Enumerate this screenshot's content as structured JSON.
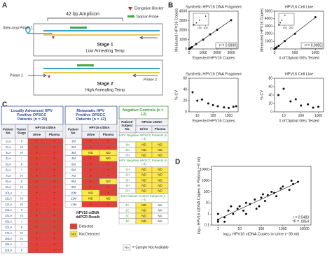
{
  "panels": {
    "a": "A",
    "b": "B",
    "c": "C",
    "d": "D"
  },
  "diagram": {
    "amplicon": "42 bp Amplicon",
    "legend": [
      "Elongation Blocker",
      "Taqman Probe"
    ],
    "stage1": {
      "primer": "Stem-loop Primer 1",
      "title": "Stage 1",
      "subtitle": "Low Annealing Temp"
    },
    "stage2": {
      "primer1": "Primer 1",
      "primer2": "Primer 2",
      "title": "Stage 2",
      "subtitle": "High Annealing Temp"
    }
  },
  "tables": [
    {
      "title": "Locally Advanced HPV Positive OPSCC Patients (n = 20)",
      "color": "#2b4a9a",
      "headers": [
        "Patient No.",
        "Tumor Stage",
        "HPV16 ctDNA",
        "Urine",
        "Plasma"
      ],
      "rows": [
        [
          "1LA",
          "II",
          "+",
          "+"
        ],
        [
          "2LA",
          "III",
          "+",
          "+"
        ],
        [
          "3LA",
          "III",
          "+",
          "+"
        ],
        [
          "4LA",
          "I",
          "+",
          "+"
        ],
        [
          "5LA",
          "II",
          "+",
          "+"
        ],
        [
          "6LA",
          "I",
          "+",
          "+"
        ],
        [
          "7LA",
          "IV",
          "+",
          "+"
        ],
        [
          "8LA",
          "II",
          "+",
          "+"
        ],
        [
          "9LA",
          "III",
          "+",
          "+"
        ],
        [
          "10LA",
          "I",
          "+",
          "+"
        ],
        [
          "11LA",
          "III",
          "+",
          "+"
        ],
        [
          "12LA",
          "IV",
          "+",
          "+"
        ],
        [
          "13LA",
          "II",
          "+",
          "+"
        ],
        [
          "14LA",
          "III",
          "+",
          "+"
        ],
        [
          "15LA",
          "I",
          "+",
          "+"
        ],
        [
          "16LA",
          "II",
          "+",
          "+"
        ],
        [
          "17LA",
          "III",
          "+",
          "+"
        ],
        [
          "18LA",
          "IV",
          "+",
          "+"
        ],
        [
          "19LA",
          "I",
          "+",
          "+"
        ],
        [
          "20LA",
          "II",
          "+",
          "+"
        ]
      ]
    },
    {
      "title": "Metastatic HPV Positive OPSCC Patients (n = 12)",
      "color": "#2b4a9a",
      "headers": [
        "Patient No.",
        "HPV16 ctDNA",
        "Urine",
        "Plasma"
      ],
      "rows": [
        [
          "1M",
          "+",
          "+"
        ],
        [
          "2M",
          "+",
          "+"
        ],
        [
          "3M",
          "ND",
          "ND"
        ],
        [
          "4M",
          "+",
          "ND"
        ],
        [
          "5M",
          "+",
          "+"
        ],
        [
          "6M",
          "+",
          "+"
        ],
        [
          "7M",
          "+",
          "+"
        ],
        [
          "8M",
          "+",
          "ND"
        ],
        [
          "9M",
          "+",
          "+"
        ],
        [
          "10M",
          "ND",
          "+"
        ],
        [
          "11M",
          "ND",
          "ND"
        ],
        [
          "12M",
          "+",
          "+"
        ]
      ]
    },
    {
      "title": "Negative Controls (n = 12)",
      "color": "#3a9a3a",
      "headers": [
        "Patient/ Subject No.",
        "HPV16 ctDNA",
        "Urine",
        "Plasma"
      ],
      "groups": [
        {
          "name": "HPV Negative OPSCC Patients (n = 3)",
          "rows": [
            [
              "1N",
              "ND",
              "ND"
            ],
            [
              "2N",
              "ND",
              "ND"
            ],
            [
              "3N",
              "ND",
              "ND"
            ]
          ]
        },
        {
          "name": "HPV Negative HNSCC Patients (n = 5)",
          "rows": [
            [
              "1H",
              "ND",
              "ND"
            ],
            [
              "2H",
              "ND",
              "ND"
            ],
            [
              "3H",
              "ND",
              "ND"
            ],
            [
              "4H",
              "ND",
              "ND"
            ],
            [
              "5H",
              "ND",
              "ND"
            ]
          ]
        },
        {
          "name": "Non-Cancer Control Subjects (n = 4)",
          "rows": [
            [
              "1C",
              "ND",
              "NA"
            ],
            [
              "2C",
              "ND",
              "NA"
            ],
            [
              "3C",
              "ND",
              "NA"
            ],
            [
              "4C",
              "ND",
              "NA"
            ]
          ]
        }
      ]
    }
  ],
  "result_legend": {
    "title": "HPV16 ctDNA ddPCR Result:",
    "items": [
      {
        "symbol": "+",
        "label": "Detected",
        "color": "#e2413a"
      },
      {
        "symbol": "ND",
        "label": "Not Detected",
        "color": "#ffe94a"
      }
    ],
    "na": {
      "symbol": "NA",
      "label": "= Sample Not Available"
    }
  },
  "chart_data": [
    {
      "type": "scatter",
      "title": "Synthetic HPV16 DNA Fragment",
      "xlabel": "Expected HPV16 Copies",
      "ylabel": "Measured HPV16 Copies",
      "x": [
        0,
        10,
        50,
        100,
        200,
        500,
        1000,
        1500,
        2000,
        3000
      ],
      "values": [
        0,
        12,
        48,
        105,
        190,
        520,
        980,
        1550,
        2030,
        3050
      ],
      "xlim": [
        0,
        3500
      ],
      "xticks": [
        0,
        1000,
        2000,
        3000
      ],
      "ylim": [
        0,
        4000
      ],
      "yticks": [
        0,
        1000,
        2000,
        3000,
        4000
      ],
      "trendline": true,
      "annotations": [
        "r² = 0.9990"
      ],
      "color": "#111111",
      "inset": {
        "x": [
          0,
          10,
          50,
          100,
          200
        ],
        "values": [
          0,
          12,
          48,
          105,
          190
        ],
        "xlim": [
          0,
          250
        ],
        "ylim": [
          0,
          250
        ],
        "xticks": [
          100,
          200
        ]
      }
    },
    {
      "type": "scatter",
      "title": "HPV16 Cell Line",
      "xlabel": "# of Diploid GEs Tested",
      "ylabel": "Measured HPV16 Copies",
      "x": [
        0,
        5,
        25,
        50,
        100,
        250,
        500,
        1000
      ],
      "values": [
        0,
        20,
        100,
        210,
        420,
        1050,
        2000,
        4200
      ],
      "xlim": [
        0,
        1200
      ],
      "xticks": [
        0,
        500,
        1000
      ],
      "ylim": [
        0,
        5000
      ],
      "yticks": [
        0,
        1000,
        2000,
        3000,
        4000,
        5000
      ],
      "trendline": true,
      "annotations": [
        "r² = 0.9985"
      ],
      "color": "#111111",
      "inset": {
        "x": [
          0,
          5,
          25,
          50,
          100
        ],
        "values": [
          0,
          20,
          100,
          210,
          420
        ],
        "xlim": [
          0,
          250
        ],
        "ylim": [
          0,
          500
        ],
        "xticks": [
          100,
          200
        ]
      }
    },
    {
      "type": "scatter",
      "title": "Synthetic HPV16 DNA Fragment",
      "xlabel": "Expected HPV16 Copies",
      "ylabel": "% CV",
      "x": [
        5,
        10,
        20,
        50,
        100,
        200,
        500,
        1000,
        2000,
        3000
      ],
      "values": [
        35,
        20,
        22,
        15,
        12,
        10,
        8,
        7,
        9,
        10
      ],
      "xlim": [
        3,
        4000
      ],
      "xticks": [
        10,
        100,
        1000
      ],
      "xlog": true,
      "ylim": [
        0,
        60
      ],
      "yticks": [
        0,
        20,
        40,
        60
      ],
      "color": "#111111"
    },
    {
      "type": "scatter",
      "title": "HPV16 Cell Line",
      "xlabel": "# of Diploid GEs Tested",
      "ylabel": "% CV",
      "x": [
        5,
        10,
        25,
        50,
        100,
        250,
        500,
        1000
      ],
      "values": [
        40,
        55,
        25,
        30,
        15,
        18,
        10,
        12
      ],
      "xlim": [
        3,
        2000
      ],
      "xticks": [
        10,
        100,
        1000
      ],
      "xlog": true,
      "ylim": [
        0,
        80
      ],
      "yticks": [
        0,
        20,
        40,
        60,
        80
      ],
      "color": "#111111"
    },
    {
      "type": "scatter",
      "xlabel": "log₁₀ HPV16 ctDNA Copies in Urine (~30 ml)",
      "ylabel": "log₁₀ HPV16 ctDNA Copies in Plasma (~8 ml)",
      "x": [
        1,
        1,
        2,
        3,
        5,
        8,
        10,
        15,
        20,
        30,
        50,
        80,
        100,
        150,
        200,
        300,
        500,
        800,
        1000,
        2000,
        3000,
        5000,
        1,
        2,
        4,
        20,
        60,
        120,
        400,
        2500
      ],
      "values": [
        0.2,
        1,
        0.5,
        2,
        1,
        3,
        5,
        2,
        10,
        8,
        20,
        5,
        30,
        15,
        50,
        100,
        40,
        200,
        300,
        150,
        500,
        800,
        0.3,
        0.2,
        5,
        1,
        3,
        60,
        80,
        1000
      ],
      "xlim": [
        0.5,
        20000
      ],
      "xticks": [
        1,
        10,
        100,
        1000,
        10000
      ],
      "xlog": true,
      "ylim": [
        0.1,
        20000
      ],
      "yticks": [
        0.1,
        1,
        10,
        100,
        1000,
        10000
      ],
      "ylog": true,
      "trendline": true,
      "annotations": [
        "r = 0.5483",
        "*P = .0054"
      ],
      "color": "#111111"
    }
  ]
}
